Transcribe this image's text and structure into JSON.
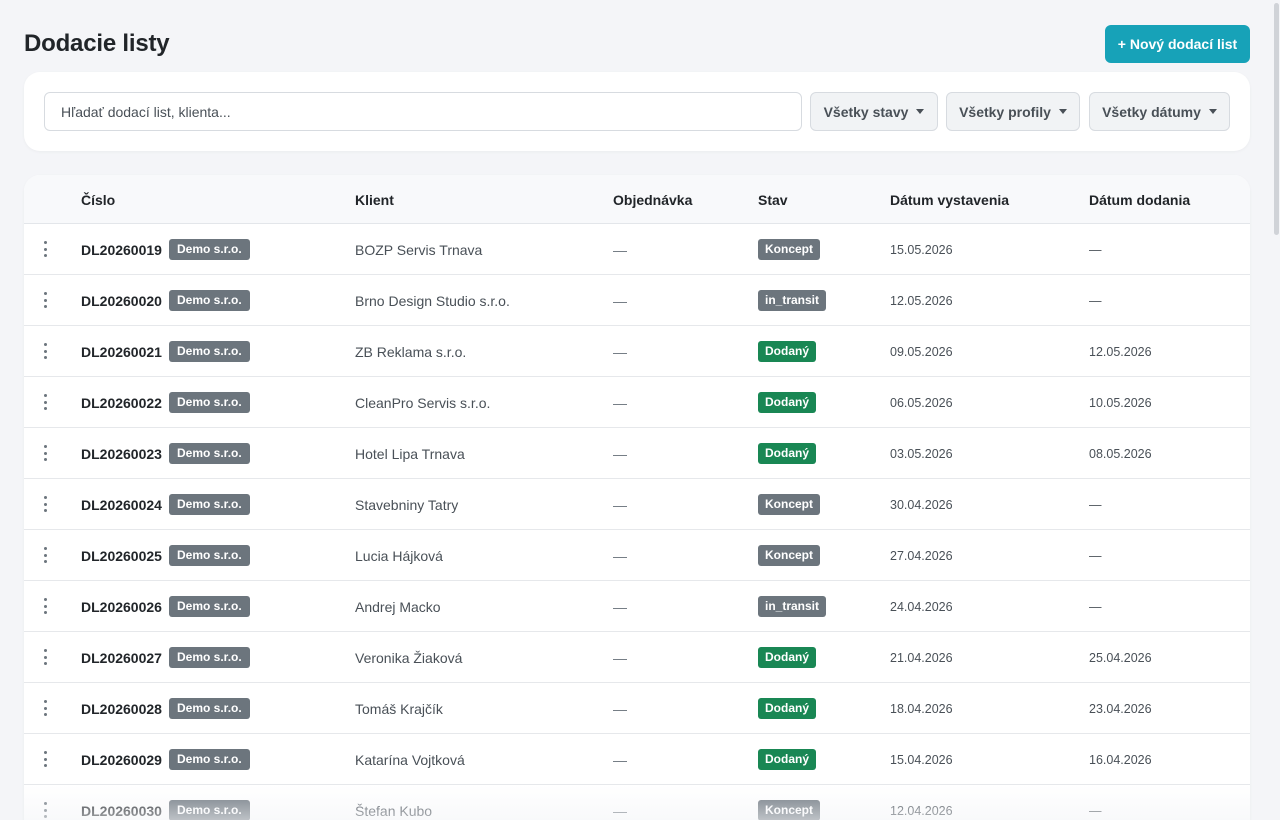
{
  "header": {
    "title": "Dodacie listy",
    "new_button": "+ Nový dodací list"
  },
  "filters": {
    "search_placeholder": "Hľadať dodací list, klienta...",
    "status_filter": "Všetky stavy",
    "profile_filter": "Všetky profily",
    "date_filter": "Všetky dátumy"
  },
  "table": {
    "columns": {
      "number": "Číslo",
      "client": "Klient",
      "order": "Objednávka",
      "status": "Stav",
      "issued": "Dátum vystavenia",
      "delivered": "Dátum dodania"
    },
    "status_colors": {
      "Koncept": "#6c757d",
      "in_transit": "#6c757d",
      "Dodaný": "#198754"
    },
    "rows": [
      {
        "number": "DL20260019",
        "company": "Demo s.r.o.",
        "client": "BOZP Servis Trnava",
        "order": "—",
        "status": "Koncept",
        "issued": "15.05.2026",
        "delivered": "—"
      },
      {
        "number": "DL20260020",
        "company": "Demo s.r.o.",
        "client": "Brno Design Studio s.r.o.",
        "order": "—",
        "status": "in_transit",
        "issued": "12.05.2026",
        "delivered": "—"
      },
      {
        "number": "DL20260021",
        "company": "Demo s.r.o.",
        "client": "ZB Reklama s.r.o.",
        "order": "—",
        "status": "Dodaný",
        "issued": "09.05.2026",
        "delivered": "12.05.2026"
      },
      {
        "number": "DL20260022",
        "company": "Demo s.r.o.",
        "client": "CleanPro Servis s.r.o.",
        "order": "—",
        "status": "Dodaný",
        "issued": "06.05.2026",
        "delivered": "10.05.2026"
      },
      {
        "number": "DL20260023",
        "company": "Demo s.r.o.",
        "client": "Hotel Lipa Trnava",
        "order": "—",
        "status": "Dodaný",
        "issued": "03.05.2026",
        "delivered": "08.05.2026"
      },
      {
        "number": "DL20260024",
        "company": "Demo s.r.o.",
        "client": "Stavebniny Tatry",
        "order": "—",
        "status": "Koncept",
        "issued": "30.04.2026",
        "delivered": "—"
      },
      {
        "number": "DL20260025",
        "company": "Demo s.r.o.",
        "client": "Lucia Hájková",
        "order": "—",
        "status": "Koncept",
        "issued": "27.04.2026",
        "delivered": "—"
      },
      {
        "number": "DL20260026",
        "company": "Demo s.r.o.",
        "client": "Andrej Macko",
        "order": "—",
        "status": "in_transit",
        "issued": "24.04.2026",
        "delivered": "—"
      },
      {
        "number": "DL20260027",
        "company": "Demo s.r.o.",
        "client": "Veronika Žiaková",
        "order": "—",
        "status": "Dodaný",
        "issued": "21.04.2026",
        "delivered": "25.04.2026"
      },
      {
        "number": "DL20260028",
        "company": "Demo s.r.o.",
        "client": "Tomáš Krajčík",
        "order": "—",
        "status": "Dodaný",
        "issued": "18.04.2026",
        "delivered": "23.04.2026"
      },
      {
        "number": "DL20260029",
        "company": "Demo s.r.o.",
        "client": "Katarína Vojtková",
        "order": "—",
        "status": "Dodaný",
        "issued": "15.04.2026",
        "delivered": "16.04.2026"
      },
      {
        "number": "DL20260030",
        "company": "Demo s.r.o.",
        "client": "Štefan Kubo",
        "order": "—",
        "status": "Koncept",
        "issued": "12.04.2026",
        "delivered": "—"
      }
    ]
  }
}
